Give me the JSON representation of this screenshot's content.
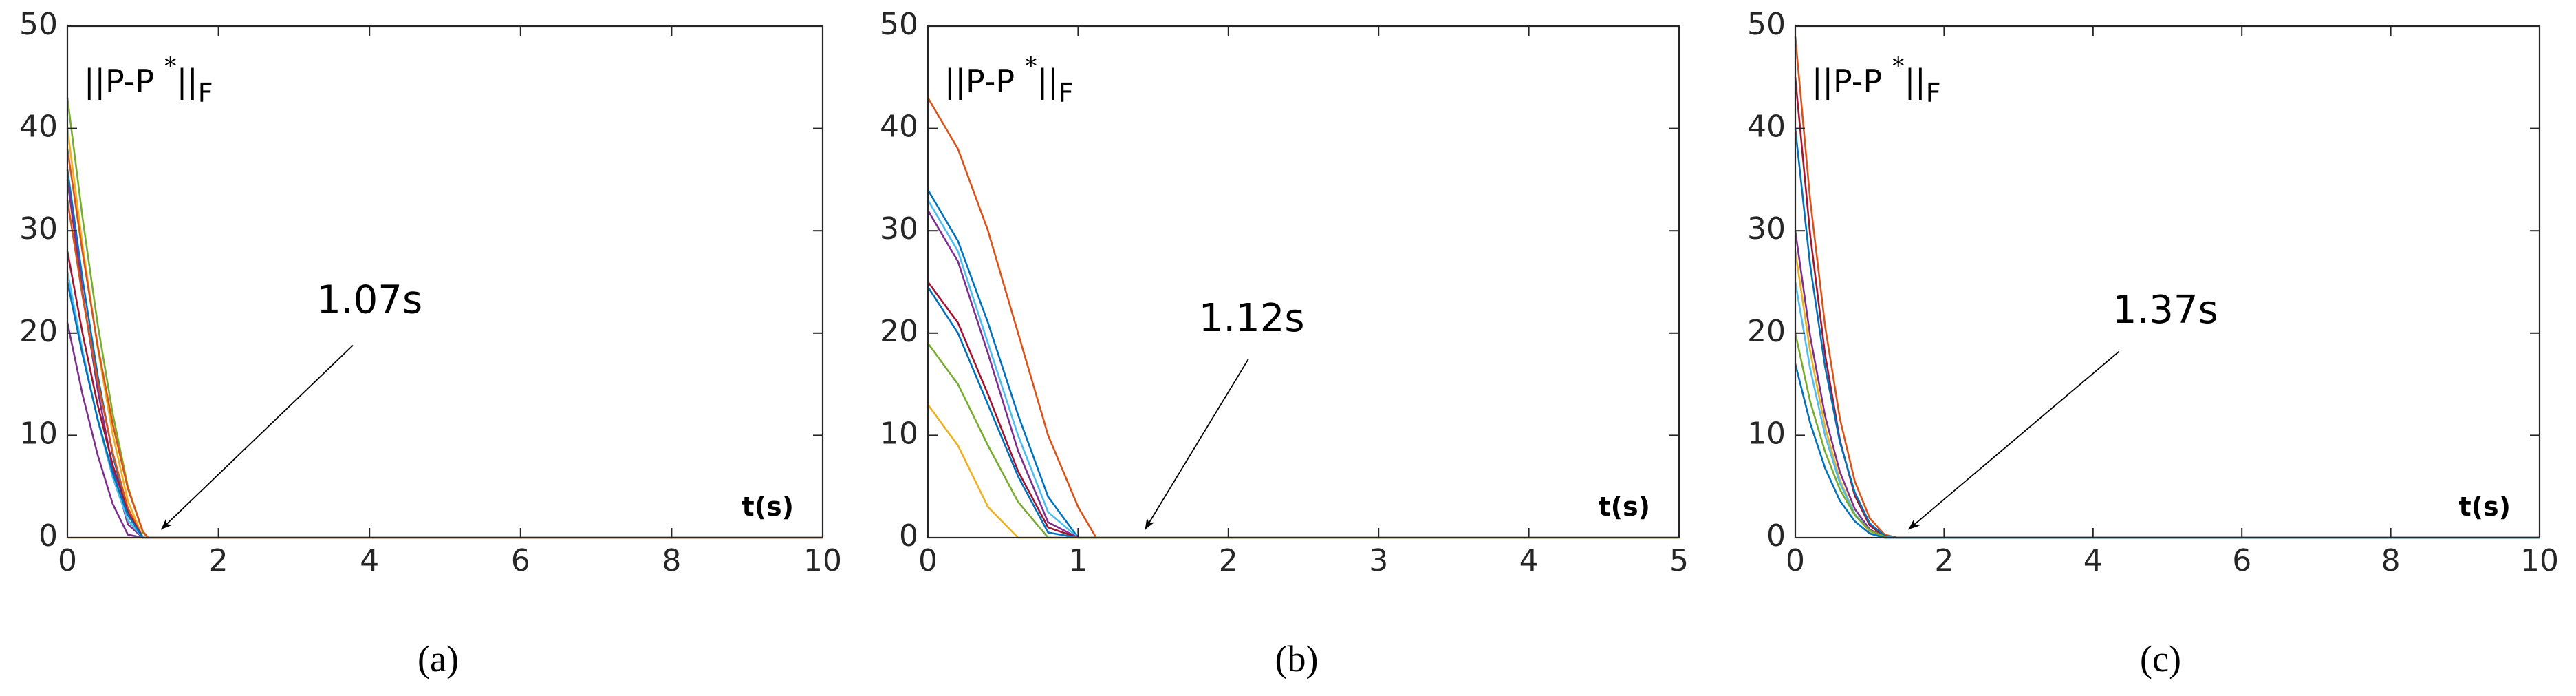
{
  "chart_data": [
    {
      "type": "line",
      "caption": "(a)",
      "annotation": "1.07s",
      "xlabel": "t(s)",
      "ylabel": {
        "base": "||P-P ",
        "sup": "*",
        "mid": "||",
        "sub": "F"
      },
      "xlim": [
        0,
        10
      ],
      "ylim": [
        0,
        50
      ],
      "xticks": [
        0,
        2,
        4,
        6,
        8,
        10
      ],
      "yticks": [
        0,
        10,
        20,
        30,
        40,
        50
      ],
      "x": [
        0,
        0.2,
        0.4,
        0.6,
        0.8,
        1,
        1.07,
        10
      ],
      "series": [
        {
          "color": "#77AC30",
          "values": [
            43,
            31.3,
            20.9,
            12.1,
            5.0,
            0.5,
            0,
            0
          ]
        },
        {
          "color": "#EDB120",
          "values": [
            40,
            28.6,
            18.6,
            10.1,
            3.6,
            0,
            0,
            0
          ]
        },
        {
          "color": "#D95319",
          "values": [
            38,
            27.9,
            18.8,
            11.1,
            4.8,
            0.6,
            0,
            0
          ]
        },
        {
          "color": "#0072BD",
          "values": [
            36,
            25.3,
            15.9,
            8.1,
            2.3,
            0,
            0,
            0
          ]
        },
        {
          "color": "#7E2F8E",
          "values": [
            35,
            24.0,
            14.5,
            6.7,
            1.3,
            0,
            0,
            0
          ]
        },
        {
          "color": "#D95319",
          "values": [
            33,
            23.6,
            15.3,
            8.3,
            2.9,
            0,
            0,
            0
          ]
        },
        {
          "color": "#A2142F",
          "values": [
            28,
            20.0,
            13.0,
            7.1,
            2.5,
            0,
            0,
            0
          ]
        },
        {
          "color": "#4DBEEE",
          "values": [
            26,
            18.3,
            11.5,
            5.9,
            1.7,
            0,
            0,
            0
          ]
        },
        {
          "color": "#0072BD",
          "values": [
            25,
            17.9,
            11.6,
            6.3,
            2.2,
            0,
            0,
            0
          ]
        },
        {
          "color": "#7E2F8E",
          "values": [
            21,
            14.0,
            8.1,
            3.3,
            0.3,
            0,
            0,
            0
          ]
        },
        {
          "color": "#EDB120",
          "values": [
            0,
            0,
            0,
            0,
            0,
            0,
            0,
            0
          ]
        }
      ]
    },
    {
      "type": "line",
      "caption": "(b)",
      "annotation": "1.12s",
      "xlabel": "t(s)",
      "ylabel": {
        "base": "||P-P ",
        "sup": "*",
        "mid": "||",
        "sub": "F"
      },
      "xlim": [
        0,
        5
      ],
      "ylim": [
        0,
        50
      ],
      "xticks": [
        0,
        1,
        2,
        3,
        4,
        5
      ],
      "yticks": [
        0,
        10,
        20,
        30,
        40,
        50
      ],
      "x": [
        0,
        0.2,
        0.4,
        0.6,
        0.8,
        1,
        1.12,
        5
      ],
      "series": [
        {
          "color": "#D95319",
          "values": [
            43,
            38,
            30,
            20,
            10,
            3,
            0,
            0
          ]
        },
        {
          "color": "#0072BD",
          "values": [
            34,
            29,
            21,
            12,
            4,
            0,
            0,
            0
          ]
        },
        {
          "color": "#4DBEEE",
          "values": [
            33,
            28,
            19,
            10,
            2.5,
            0,
            0,
            0
          ]
        },
        {
          "color": "#7E2F8E",
          "values": [
            32,
            27,
            18,
            8.5,
            1.5,
            0,
            0,
            0
          ]
        },
        {
          "color": "#A2142F",
          "values": [
            25,
            21,
            14,
            6.5,
            1,
            0,
            0,
            0
          ]
        },
        {
          "color": "#0072BD",
          "values": [
            24.5,
            20,
            13,
            6,
            0.5,
            0,
            0,
            0
          ]
        },
        {
          "color": "#77AC30",
          "values": [
            19,
            15,
            9,
            3.5,
            0,
            0,
            0,
            0
          ]
        },
        {
          "color": "#EDB120",
          "values": [
            13,
            9,
            3,
            0,
            0,
            0,
            0,
            0
          ]
        }
      ]
    },
    {
      "type": "line",
      "caption": "(c)",
      "annotation": "1.37s",
      "xlabel": "t(s)",
      "ylabel": {
        "base": "||P-P ",
        "sup": "*",
        "mid": "||",
        "sub": "F"
      },
      "xlim": [
        0,
        10
      ],
      "ylim": [
        0,
        50
      ],
      "xticks": [
        0,
        2,
        4,
        6,
        8,
        10
      ],
      "yticks": [
        0,
        10,
        20,
        30,
        40,
        50
      ],
      "x": [
        0,
        0.2,
        0.4,
        0.6,
        0.8,
        1,
        1.2,
        1.37,
        10
      ],
      "series": [
        {
          "color": "#D95319",
          "values": [
            49,
            33.0,
            20.7,
            11.6,
            5.5,
            1.9,
            0.3,
            0,
            0
          ]
        },
        {
          "color": "#A2142F",
          "values": [
            45,
            29.6,
            17.9,
            9.5,
            4.1,
            1.2,
            0.1,
            0,
            0
          ]
        },
        {
          "color": "#0072BD",
          "values": [
            40,
            26.6,
            16.7,
            9.3,
            4.4,
            1.4,
            0.2,
            0,
            0
          ]
        },
        {
          "color": "#7E2F8E",
          "values": [
            30,
            19.7,
            11.9,
            6.4,
            2.8,
            0.8,
            0.1,
            0,
            0
          ]
        },
        {
          "color": "#EDB120",
          "values": [
            28,
            18.2,
            10.8,
            5.6,
            2.3,
            0.6,
            0,
            0,
            0
          ]
        },
        {
          "color": "#4DBEEE",
          "values": [
            25,
            16.5,
            10.0,
            5.3,
            2.3,
            0.7,
            0,
            0,
            0
          ]
        },
        {
          "color": "#77AC30",
          "values": [
            20,
            13.3,
            8.4,
            4.7,
            2.2,
            0.7,
            0.1,
            0,
            0
          ]
        },
        {
          "color": "#0072BD",
          "values": [
            17,
            11.2,
            6.8,
            3.6,
            1.6,
            0.4,
            0,
            0,
            0
          ]
        }
      ]
    }
  ]
}
